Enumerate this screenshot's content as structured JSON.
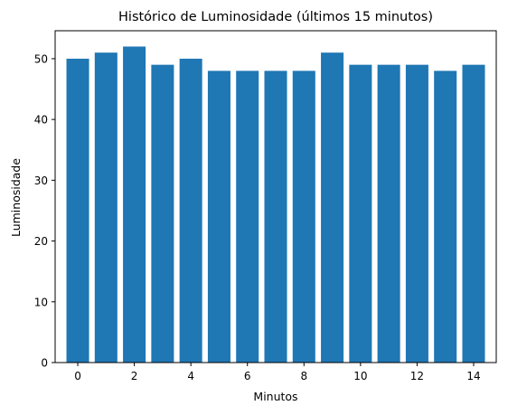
{
  "chart_data": {
    "type": "bar",
    "title": "Histórico de Luminosidade (últimos 15 minutos)",
    "xlabel": "Minutos",
    "ylabel": "Luminosidade",
    "x": [
      0,
      1,
      2,
      3,
      4,
      5,
      6,
      7,
      8,
      9,
      10,
      11,
      12,
      13,
      14
    ],
    "values": [
      50,
      51,
      52,
      49,
      50,
      48,
      48,
      48,
      48,
      51,
      49,
      49,
      49,
      48,
      49
    ],
    "xlim": [
      -0.8,
      14.8
    ],
    "ylim": [
      0,
      54.6
    ],
    "xticks": [
      0,
      2,
      4,
      6,
      8,
      10,
      12,
      14
    ],
    "yticks": [
      0,
      10,
      20,
      30,
      40,
      50
    ],
    "bar_color": "#1f77b4",
    "grid": false,
    "legend": "none"
  }
}
